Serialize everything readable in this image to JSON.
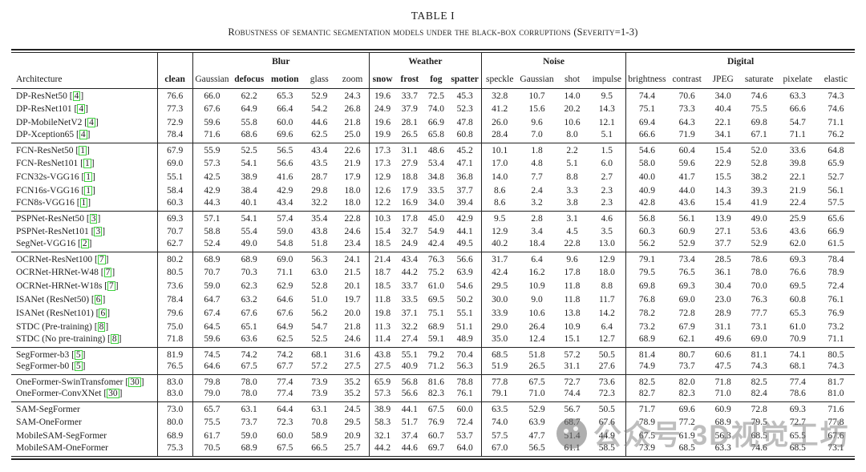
{
  "title": "TABLE I",
  "subtitle": "Robustness of semantic segmentation models under the black-box corruptions (Severity=1-3)",
  "watermark": {
    "text": "公众号 3D视觉工坊",
    "icon": "wechat-logo"
  },
  "colors": {
    "cite_box": "#3ed13e",
    "rule": "#222222",
    "watermark": "#7d7d7d"
  },
  "table": {
    "arch_header": "Architecture",
    "clean_header": "clean",
    "groups": [
      {
        "label": "Blur",
        "columns": [
          {
            "label": "Gaussian",
            "bold": false
          },
          {
            "label": "defocus",
            "bold": true
          },
          {
            "label": "motion",
            "bold": true
          },
          {
            "label": "glass",
            "bold": false
          },
          {
            "label": "zoom",
            "bold": false
          }
        ]
      },
      {
        "label": "Weather",
        "columns": [
          {
            "label": "snow",
            "bold": true
          },
          {
            "label": "frost",
            "bold": true
          },
          {
            "label": "fog",
            "bold": true
          },
          {
            "label": "spatter",
            "bold": true
          }
        ]
      },
      {
        "label": "Noise",
        "columns": [
          {
            "label": "speckle",
            "bold": false
          },
          {
            "label": "Gaussian",
            "bold": false
          },
          {
            "label": "shot",
            "bold": false
          },
          {
            "label": "impulse",
            "bold": false
          }
        ]
      },
      {
        "label": "Digital",
        "columns": [
          {
            "label": "brightness",
            "bold": false
          },
          {
            "label": "contrast",
            "bold": false
          },
          {
            "label": "JPEG",
            "bold": false
          },
          {
            "label": "saturate",
            "bold": false
          },
          {
            "label": "pixelate",
            "bold": false
          },
          {
            "label": "elastic",
            "bold": false
          }
        ]
      }
    ],
    "row_groups": [
      {
        "rows": [
          {
            "name": "DP-ResNet50",
            "cite": "4",
            "values": [
              "76.6",
              "66.0",
              "62.2",
              "65.3",
              "52.9",
              "24.3",
              "19.6",
              "33.7",
              "72.5",
              "45.3",
              "32.8",
              "10.7",
              "14.0",
              "9.5",
              "74.4",
              "70.6",
              "34.0",
              "74.6",
              "63.3",
              "74.3"
            ]
          },
          {
            "name": "DP-ResNet101",
            "cite": "4",
            "values": [
              "77.3",
              "67.6",
              "64.9",
              "66.4",
              "54.2",
              "26.8",
              "24.9",
              "37.9",
              "74.0",
              "52.3",
              "41.2",
              "15.6",
              "20.2",
              "14.3",
              "75.1",
              "73.3",
              "40.4",
              "75.5",
              "66.6",
              "74.6"
            ]
          },
          {
            "name": "DP-MobileNetV2",
            "cite": "4",
            "values": [
              "72.9",
              "59.6",
              "55.8",
              "60.0",
              "44.6",
              "21.8",
              "19.6",
              "28.1",
              "66.9",
              "47.8",
              "26.0",
              "9.6",
              "10.6",
              "12.1",
              "69.4",
              "64.3",
              "22.1",
              "69.8",
              "54.7",
              "71.1"
            ]
          },
          {
            "name": "DP-Xception65",
            "cite": "4",
            "values": [
              "78.4",
              "71.6",
              "68.6",
              "69.6",
              "62.5",
              "25.0",
              "19.9",
              "26.5",
              "65.8",
              "60.8",
              "28.4",
              "7.0",
              "8.0",
              "5.1",
              "66.6",
              "71.9",
              "34.1",
              "67.1",
              "71.1",
              "76.2"
            ]
          }
        ]
      },
      {
        "rows": [
          {
            "name": "FCN-ResNet50",
            "cite": "1",
            "values": [
              "67.9",
              "55.9",
              "52.5",
              "56.5",
              "43.4",
              "22.6",
              "17.3",
              "31.1",
              "48.6",
              "45.2",
              "10.1",
              "1.8",
              "2.2",
              "1.5",
              "54.6",
              "60.4",
              "15.4",
              "52.0",
              "33.6",
              "64.8"
            ]
          },
          {
            "name": "FCN-ResNet101",
            "cite": "1",
            "values": [
              "69.0",
              "57.3",
              "54.1",
              "56.6",
              "43.5",
              "21.9",
              "17.3",
              "27.9",
              "53.4",
              "47.1",
              "17.0",
              "4.8",
              "5.1",
              "6.0",
              "58.0",
              "59.6",
              "22.9",
              "52.8",
              "39.8",
              "65.9"
            ]
          },
          {
            "name": "FCN32s-VGG16",
            "cite": "1",
            "values": [
              "55.1",
              "42.5",
              "38.9",
              "41.6",
              "28.7",
              "17.9",
              "12.9",
              "18.8",
              "34.8",
              "36.8",
              "14.0",
              "7.7",
              "8.8",
              "2.7",
              "40.0",
              "41.7",
              "15.5",
              "38.2",
              "22.1",
              "52.7"
            ]
          },
          {
            "name": "FCN16s-VGG16",
            "cite": "1",
            "values": [
              "58.4",
              "42.9",
              "38.4",
              "42.9",
              "29.8",
              "18.0",
              "12.6",
              "17.9",
              "33.5",
              "37.7",
              "8.6",
              "2.4",
              "3.3",
              "2.3",
              "40.9",
              "44.0",
              "14.3",
              "39.3",
              "21.9",
              "56.1"
            ]
          },
          {
            "name": "FCN8s-VGG16",
            "cite": "1",
            "values": [
              "60.3",
              "44.3",
              "40.1",
              "43.4",
              "32.2",
              "18.0",
              "12.2",
              "16.9",
              "34.0",
              "39.4",
              "8.6",
              "3.2",
              "3.8",
              "2.3",
              "42.8",
              "43.6",
              "15.4",
              "41.9",
              "22.4",
              "57.5"
            ]
          }
        ]
      },
      {
        "rows": [
          {
            "name": "PSPNet-ResNet50",
            "cite": "3",
            "values": [
              "69.3",
              "57.1",
              "54.1",
              "57.4",
              "35.4",
              "22.8",
              "10.3",
              "17.8",
              "45.0",
              "42.9",
              "9.5",
              "2.8",
              "3.1",
              "4.6",
              "56.8",
              "56.1",
              "13.9",
              "49.0",
              "25.9",
              "65.6"
            ]
          },
          {
            "name": "PSPNet-ResNet101",
            "cite": "3",
            "values": [
              "70.7",
              "58.8",
              "55.4",
              "59.0",
              "43.8",
              "24.6",
              "15.4",
              "32.7",
              "54.9",
              "44.1",
              "12.9",
              "3.4",
              "4.5",
              "3.5",
              "60.3",
              "60.9",
              "27.1",
              "53.6",
              "43.6",
              "66.9"
            ]
          },
          {
            "name": "SegNet-VGG16",
            "cite": "2",
            "values": [
              "62.7",
              "52.4",
              "49.0",
              "54.8",
              "51.8",
              "23.4",
              "18.5",
              "24.9",
              "42.4",
              "49.5",
              "40.2",
              "18.4",
              "22.8",
              "13.0",
              "56.2",
              "52.9",
              "37.7",
              "52.9",
              "62.0",
              "61.5"
            ]
          }
        ]
      },
      {
        "rows": [
          {
            "name": "OCRNet-ResNet100",
            "cite": "7",
            "values": [
              "80.2",
              "68.9",
              "68.9",
              "69.0",
              "56.3",
              "24.1",
              "21.4",
              "43.4",
              "76.3",
              "56.6",
              "31.7",
              "6.4",
              "9.6",
              "12.9",
              "79.1",
              "73.4",
              "28.5",
              "78.6",
              "69.3",
              "78.4"
            ]
          },
          {
            "name": "OCRNet-HRNet-W48",
            "cite": "7",
            "values": [
              "80.5",
              "70.7",
              "70.3",
              "71.1",
              "63.0",
              "21.5",
              "18.7",
              "44.2",
              "75.2",
              "63.9",
              "42.4",
              "16.2",
              "17.8",
              "18.0",
              "79.5",
              "76.5",
              "36.1",
              "78.0",
              "76.6",
              "78.9"
            ]
          },
          {
            "name": "OCRNet-HRNet-W18s",
            "cite": "7",
            "values": [
              "73.6",
              "59.0",
              "62.3",
              "62.9",
              "52.8",
              "20.1",
              "18.5",
              "33.7",
              "61.0",
              "54.6",
              "29.5",
              "10.9",
              "11.8",
              "8.8",
              "69.8",
              "69.3",
              "30.4",
              "70.0",
              "69.5",
              "72.4"
            ]
          },
          {
            "name": "ISANet (ResNet50)",
            "cite": "6",
            "values": [
              "78.4",
              "64.7",
              "63.2",
              "64.6",
              "51.0",
              "19.7",
              "11.8",
              "33.5",
              "69.5",
              "50.2",
              "30.0",
              "9.0",
              "11.8",
              "11.7",
              "76.8",
              "69.0",
              "23.0",
              "76.3",
              "60.8",
              "76.1"
            ]
          },
          {
            "name": "ISANet (ResNet101)",
            "cite": "6",
            "values": [
              "79.6",
              "67.4",
              "67.6",
              "67.6",
              "56.2",
              "20.0",
              "19.8",
              "37.1",
              "75.1",
              "55.1",
              "33.9",
              "10.6",
              "13.8",
              "14.2",
              "78.2",
              "72.8",
              "28.9",
              "77.7",
              "65.3",
              "76.9"
            ]
          },
          {
            "name": "STDC (Pre-training)",
            "cite": "8",
            "values": [
              "75.0",
              "64.5",
              "65.1",
              "64.9",
              "54.7",
              "21.8",
              "11.3",
              "32.2",
              "68.9",
              "51.1",
              "29.0",
              "26.4",
              "10.9",
              "6.4",
              "73.2",
              "67.9",
              "31.1",
              "73.1",
              "61.0",
              "73.2"
            ]
          },
          {
            "name": "STDC (No pre-training)",
            "cite": "8",
            "values": [
              "71.8",
              "59.6",
              "63.6",
              "62.5",
              "52.5",
              "24.6",
              "11.4",
              "27.4",
              "59.1",
              "48.9",
              "35.0",
              "12.4",
              "15.1",
              "12.7",
              "68.9",
              "62.1",
              "49.6",
              "69.0",
              "70.9",
              "71.1"
            ]
          }
        ]
      },
      {
        "rows": [
          {
            "name": "SegFormer-b3",
            "cite": "5",
            "values": [
              "81.9",
              "74.5",
              "74.2",
              "74.2",
              "68.1",
              "31.6",
              "43.8",
              "55.1",
              "79.2",
              "70.4",
              "68.5",
              "51.8",
              "57.2",
              "50.5",
              "81.4",
              "80.7",
              "60.6",
              "81.1",
              "74.1",
              "80.5"
            ]
          },
          {
            "name": "SegFormer-b0",
            "cite": "5",
            "values": [
              "76.5",
              "64.6",
              "67.5",
              "67.7",
              "57.2",
              "27.5",
              "27.5",
              "40.9",
              "71.2",
              "56.3",
              "51.9",
              "26.5",
              "31.1",
              "27.6",
              "74.9",
              "73.7",
              "47.5",
              "74.3",
              "68.1",
              "74.3"
            ]
          }
        ]
      },
      {
        "rows": [
          {
            "name": "OneFormer-SwinTransfomer",
            "cite": "30",
            "values": [
              "83.0",
              "79.8",
              "78.0",
              "77.4",
              "73.9",
              "35.2",
              "65.9",
              "56.8",
              "81.6",
              "78.8",
              "77.8",
              "67.5",
              "72.7",
              "73.6",
              "82.5",
              "82.0",
              "71.8",
              "82.5",
              "77.4",
              "81.7"
            ]
          },
          {
            "name": "OneFormer-ConvXNet",
            "cite": "30",
            "values": [
              "83.0",
              "79.0",
              "78.0",
              "77.4",
              "73.9",
              "35.2",
              "57.3",
              "56.6",
              "82.3",
              "76.1",
              "79.1",
              "71.0",
              "74.4",
              "72.3",
              "82.7",
              "82.3",
              "71.0",
              "82.4",
              "78.6",
              "81.0"
            ]
          }
        ]
      },
      {
        "rows": [
          {
            "name": "SAM-SegFormer",
            "cite": null,
            "values": [
              "73.0",
              "65.7",
              "63.1",
              "64.4",
              "63.1",
              "24.5",
              "38.9",
              "44.1",
              "67.5",
              "60.0",
              "63.5",
              "52.9",
              "56.7",
              "50.5",
              "71.7",
              "69.6",
              "60.9",
              "72.8",
              "69.3",
              "71.6"
            ]
          },
          {
            "name": "SAM-OneFormer",
            "cite": null,
            "values": [
              "80.0",
              "75.5",
              "73.7",
              "72.3",
              "70.8",
              "29.5",
              "58.3",
              "51.7",
              "76.9",
              "72.4",
              "74.0",
              "63.9",
              "68.7",
              "67.6",
              "78.9",
              "77.2",
              "68.9",
              "79.5",
              "72.7",
              "77.8"
            ]
          },
          {
            "name": "MobileSAM-SegFormer",
            "cite": null,
            "values": [
              "68.9",
              "61.7",
              "59.0",
              "60.0",
              "58.9",
              "20.9",
              "32.1",
              "37.4",
              "60.7",
              "53.7",
              "57.5",
              "47.7",
              "51.4",
              "44.9",
              "67.5",
              "61.9",
              "56.3",
              "68.5",
              "65.5",
              "67.6"
            ]
          },
          {
            "name": "MobileSAM-OneFormer",
            "cite": null,
            "values": [
              "75.3",
              "70.5",
              "68.9",
              "67.5",
              "66.5",
              "25.7",
              "44.2",
              "44.6",
              "69.7",
              "64.0",
              "67.0",
              "56.5",
              "61.1",
              "58.5",
              "73.9",
              "68.5",
              "63.3",
              "74.6",
              "68.5",
              "73.1"
            ]
          }
        ]
      }
    ]
  }
}
